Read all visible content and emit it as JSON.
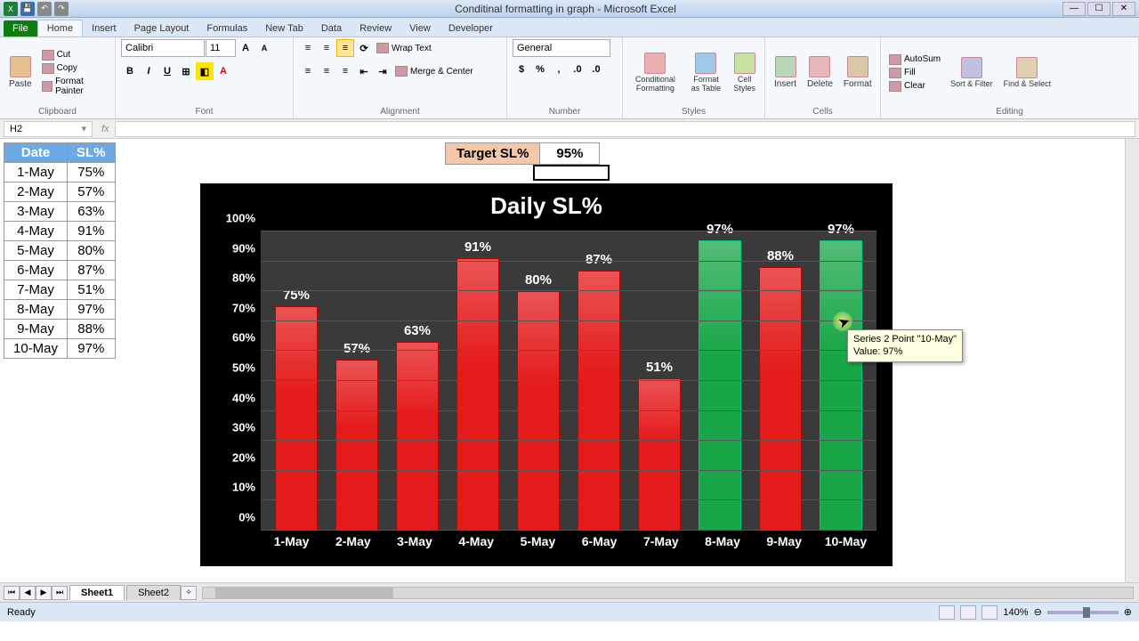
{
  "app": {
    "title": "Conditinal formatting in graph - Microsoft Excel"
  },
  "window": {
    "min": "—",
    "max": "☐",
    "close": "✕"
  },
  "tabs": {
    "file": "File",
    "home": "Home",
    "insert": "Insert",
    "pagelayout": "Page Layout",
    "formulas": "Formulas",
    "newtab": "New Tab",
    "data": "Data",
    "review": "Review",
    "view": "View",
    "developer": "Developer"
  },
  "ribbon": {
    "clipboard": {
      "label": "Clipboard",
      "paste": "Paste",
      "cut": "Cut",
      "copy": "Copy",
      "painter": "Format Painter"
    },
    "font": {
      "label": "Font",
      "name": "Calibri",
      "size": "11"
    },
    "alignment": {
      "label": "Alignment",
      "wrap": "Wrap Text",
      "merge": "Merge & Center"
    },
    "number": {
      "label": "Number",
      "format": "General"
    },
    "styles": {
      "label": "Styles",
      "cf": "Conditional Formatting",
      "fmt": "Format as Table",
      "cell": "Cell Styles"
    },
    "cells": {
      "label": "Cells",
      "insert": "Insert",
      "delete": "Delete",
      "format": "Format"
    },
    "editing": {
      "label": "Editing",
      "sum": "AutoSum",
      "fill": "Fill",
      "clear": "Clear",
      "sort": "Sort & Filter",
      "find": "Find & Select"
    }
  },
  "namebox": "H2",
  "target": {
    "label": "Target SL%",
    "value": "95%"
  },
  "table": {
    "headers": [
      "Date",
      "SL%"
    ],
    "rows": [
      [
        "1-May",
        "75%"
      ],
      [
        "2-May",
        "57%"
      ],
      [
        "3-May",
        "63%"
      ],
      [
        "4-May",
        "91%"
      ],
      [
        "5-May",
        "80%"
      ],
      [
        "6-May",
        "87%"
      ],
      [
        "7-May",
        "51%"
      ],
      [
        "8-May",
        "97%"
      ],
      [
        "9-May",
        "88%"
      ],
      [
        "10-May",
        "97%"
      ]
    ]
  },
  "chart": {
    "type": "bar",
    "title": "Daily SL%",
    "background_color": "#000000",
    "plot_color": "#3a3a3a",
    "categories": [
      "1-May",
      "2-May",
      "3-May",
      "4-May",
      "5-May",
      "6-May",
      "7-May",
      "8-May",
      "9-May",
      "10-May"
    ],
    "values": [
      75,
      57,
      63,
      91,
      80,
      87,
      51,
      97,
      88,
      97
    ],
    "bar_colors": [
      "#e41b1b",
      "#e41b1b",
      "#e41b1b",
      "#e41b1b",
      "#e41b1b",
      "#e41b1b",
      "#e41b1b",
      "#18a648",
      "#e41b1b",
      "#18a648"
    ],
    "ylim": [
      0,
      100
    ],
    "ytick_step": 10,
    "yticks": [
      "0%",
      "10%",
      "20%",
      "30%",
      "40%",
      "50%",
      "60%",
      "70%",
      "80%",
      "90%",
      "100%"
    ],
    "label_color": "#ffffff",
    "title_fontsize": 26,
    "threshold_pct": 95,
    "color_below": "#e41b1b",
    "color_at_or_above": "#18a648"
  },
  "tooltip": {
    "line1": "Series 2 Point \"10-May\"",
    "line2": "Value: 97%"
  },
  "sheets": {
    "s1": "Sheet1",
    "s2": "Sheet2"
  },
  "status": {
    "ready": "Ready",
    "zoom": "140%"
  }
}
